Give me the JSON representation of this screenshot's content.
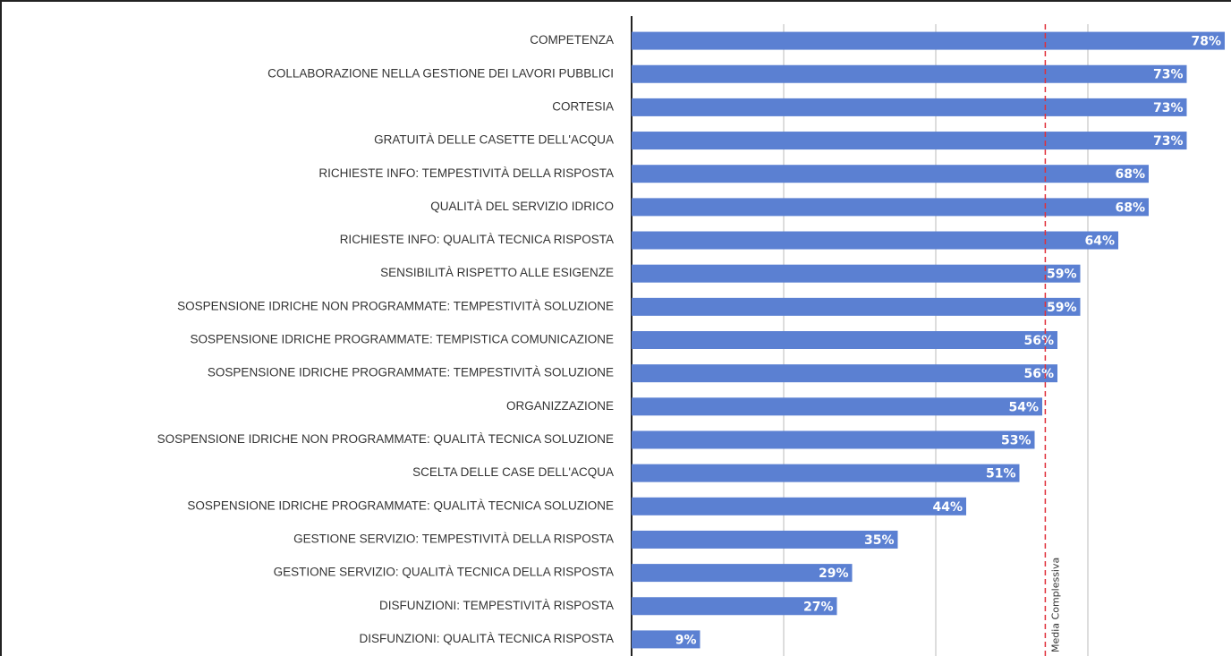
{
  "chart_data": {
    "type": "barh",
    "categories": [
      "COMPETENZA",
      "COLLABORAZIONE NELLA GESTIONE DEI LAVORI PUBBLICI",
      "CORTESIA",
      "GRATUITÀ DELLE CASETTE DELL'ACQUA",
      "RICHIESTE INFO: TEMPESTIVITÀ DELLA RISPOSTA",
      "QUALITÀ DEL SERVIZIO IDRICO",
      "RICHIESTE INFO: QUALITÀ TECNICA RISPOSTA",
      "SENSIBILITÀ RISPETTO ALLE ESIGENZE",
      "SOSPENSIONE IDRICHE NON PROGRAMMATE: TEMPESTIVITÀ SOLUZIONE",
      "SOSPENSIONE IDRICHE PROGRAMMATE: TEMPISTICA COMUNICAZIONE",
      "SOSPENSIONE IDRICHE PROGRAMMATE: TEMPESTIVITÀ SOLUZIONE",
      "ORGANIZZAZIONE",
      "SOSPENSIONE IDRICHE NON PROGRAMMATE: QUALITÀ TECNICA SOLUZIONE",
      "SCELTA DELLE CASE DELL'ACQUA",
      "SOSPENSIONE IDRICHE PROGRAMMATE: QUALITÀ TECNICA SOLUZIONE",
      "GESTIONE SERVIZIO: TEMPESTIVITÀ DELLA RISPOSTA",
      "GESTIONE SERVIZIO: QUALITÀ TECNICA DELLA RISPOSTA",
      "DISFUNZIONI: TEMPESTIVITÀ RISPOSTA",
      "DISFUNZIONI: QUALITÀ TECNICA RISPOSTA"
    ],
    "values": [
      78,
      73,
      73,
      73,
      68,
      68,
      64,
      59,
      59,
      56,
      56,
      54,
      53,
      51,
      44,
      35,
      29,
      27,
      9
    ],
    "value_labels": [
      "78%",
      "73%",
      "73%",
      "73%",
      "68%",
      "68%",
      "64%",
      "59%",
      "59%",
      "56%",
      "56%",
      "54%",
      "53%",
      "51%",
      "44%",
      "35%",
      "29%",
      "27%",
      "9%"
    ],
    "color": "#5b80d2",
    "xlim": [
      0,
      80
    ],
    "xticks": [
      0,
      20,
      40,
      60,
      80
    ],
    "grid": true,
    "mean_line": {
      "value": 54.4,
      "label": "Media Complessiva",
      "color": "#e0303a"
    }
  }
}
